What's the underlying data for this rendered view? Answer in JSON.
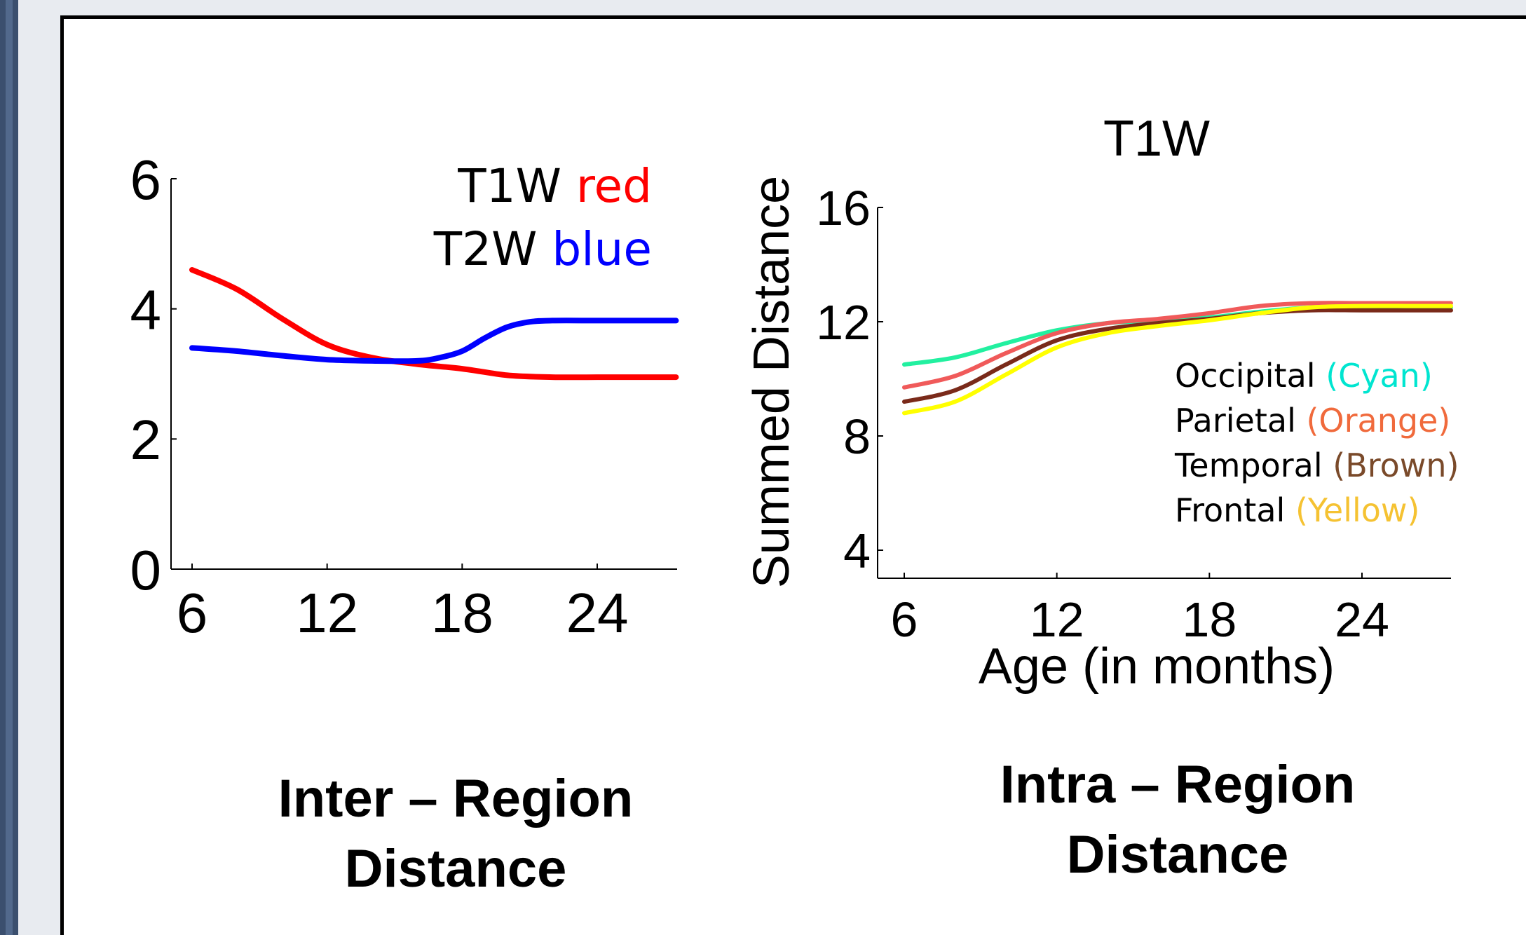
{
  "chart_data": [
    {
      "type": "line",
      "title": "",
      "xlabel": "",
      "ylabel": "",
      "xlim": [
        5,
        28
      ],
      "ylim": [
        0,
        6
      ],
      "x_ticks": [
        6,
        12,
        18,
        24
      ],
      "y_ticks": [
        0,
        2,
        4,
        6
      ],
      "legend": [
        {
          "prefix": "T1W",
          "word": "red",
          "color": "#ff0000"
        },
        {
          "prefix": "T2W",
          "word": "blue",
          "color": "#0000ff"
        }
      ],
      "legend_position": "top-right",
      "series": [
        {
          "color": "#ff0000",
          "x": [
            6,
            8,
            10,
            12,
            14,
            16,
            18,
            20,
            22,
            24,
            26,
            27.5
          ],
          "y": [
            4.6,
            4.3,
            3.85,
            3.45,
            3.25,
            3.15,
            3.08,
            2.98,
            2.95,
            2.95,
            2.95,
            2.95
          ]
        },
        {
          "color": "#0000ff",
          "x": [
            6,
            8,
            10,
            12,
            14,
            16,
            17,
            18,
            19,
            20,
            21,
            22,
            24,
            26,
            27.5
          ],
          "y": [
            3.4,
            3.35,
            3.28,
            3.22,
            3.2,
            3.2,
            3.25,
            3.35,
            3.55,
            3.72,
            3.8,
            3.82,
            3.82,
            3.82,
            3.82
          ]
        }
      ],
      "caption": [
        "Inter – Region",
        "Distance"
      ]
    },
    {
      "type": "line",
      "title": "T1W",
      "xlabel": "Age (in months)",
      "ylabel": "Summed Distance",
      "xlim": [
        5,
        28
      ],
      "ylim": [
        3,
        16
      ],
      "x_ticks": [
        6,
        12,
        18,
        24
      ],
      "y_ticks": [
        4,
        8,
        12,
        16
      ],
      "legend": [
        {
          "prefix": "Occipital",
          "word": "(Cyan)",
          "color": "#00e5d0"
        },
        {
          "prefix": "Parietal",
          "word": "(Orange)",
          "color": "#f06a3c"
        },
        {
          "prefix": "Temporal",
          "word": "(Brown)",
          "color": "#7a4a2a"
        },
        {
          "prefix": "Frontal",
          "word": "(Yellow)",
          "color": "#f5c232"
        }
      ],
      "legend_position": "center-right",
      "series": [
        {
          "color": "#22f0a0",
          "x": [
            6,
            8,
            10,
            12,
            14,
            16,
            18,
            20,
            22,
            24,
            26,
            27.5
          ],
          "y": [
            10.5,
            10.75,
            11.25,
            11.7,
            11.95,
            12.05,
            12.15,
            12.35,
            12.5,
            12.5,
            12.5,
            12.5
          ]
        },
        {
          "color": "#f05a5a",
          "x": [
            6,
            8,
            10,
            12,
            14,
            16,
            18,
            20,
            22,
            24,
            26,
            27.5
          ],
          "y": [
            9.7,
            10.1,
            10.9,
            11.6,
            11.95,
            12.1,
            12.3,
            12.55,
            12.65,
            12.65,
            12.65,
            12.65
          ]
        },
        {
          "color": "#7a2a1a",
          "x": [
            6,
            8,
            10,
            12,
            14,
            16,
            18,
            20,
            22,
            24,
            26,
            27.5
          ],
          "y": [
            9.2,
            9.6,
            10.5,
            11.35,
            11.75,
            11.95,
            12.1,
            12.3,
            12.4,
            12.4,
            12.4,
            12.4
          ]
        },
        {
          "color": "#ffff00",
          "x": [
            6,
            8,
            10,
            12,
            14,
            16,
            18,
            20,
            22,
            24,
            26,
            27.5
          ],
          "y": [
            8.8,
            9.2,
            10.15,
            11.1,
            11.6,
            11.85,
            12.05,
            12.3,
            12.5,
            12.55,
            12.55,
            12.55
          ]
        }
      ],
      "caption": [
        "Intra – Region",
        "Distance"
      ]
    }
  ]
}
